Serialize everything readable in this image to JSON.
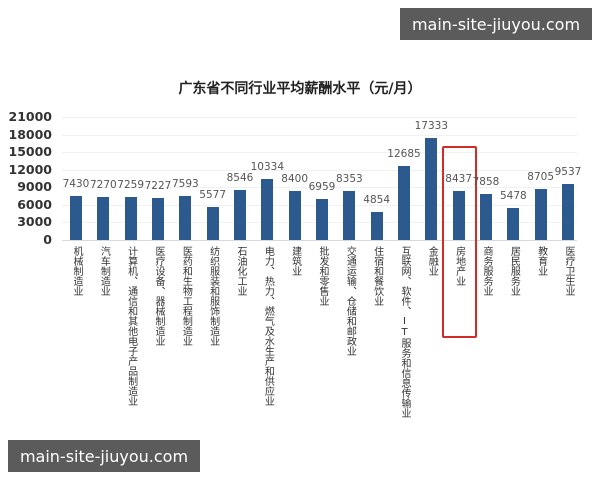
{
  "watermarks": {
    "top_right": "main-site-jiuyou.com",
    "bottom_left": "main-site-jiuyou.com"
  },
  "chart_data": {
    "type": "bar",
    "title": "广东省不同行业平均薪酬水平（元/月）",
    "xlabel": "",
    "ylabel": "",
    "ylim": [
      0,
      21000
    ],
    "yticks": [
      "21000",
      "18000",
      "15000",
      "12000",
      "9000",
      "6000",
      "3000",
      "0"
    ],
    "grid": true,
    "legend": null,
    "bar_color": "#2d5a8e",
    "highlight_color": "#d22c26",
    "highlighted_category": "房地产业",
    "categories": [
      "机械制造业",
      "汽车制造业",
      "计算机、通信和其他电子产品制造业",
      "医疗设备、器械制造业",
      "医药和生物工程制造业",
      "纺织服装和服饰制造业",
      "石油化工业",
      "电力、热力、燃气及水生产和供应业",
      "建筑业",
      "批发和零售业",
      "交通运输、仓储和邮政业",
      "住宿和餐饮业",
      "互联网、软件、IT服务和信息传输业",
      "金融业",
      "房地产业",
      "商务服务业",
      "居民服务业",
      "教育业",
      "医疗卫生业"
    ],
    "values": [
      7430,
      7270,
      7259,
      7227,
      7593,
      5577,
      8546,
      10334,
      8400,
      6959,
      8353,
      4854,
      12685,
      17333,
      8437,
      7858,
      5478,
      8705,
      9537
    ],
    "value_labels": [
      "7430",
      "7270",
      "7259",
      "7227",
      "7593",
      "5577",
      "8546",
      "10334",
      "8400",
      "6959",
      "8353",
      "4854",
      "12685",
      "17333",
      "8437",
      "7858",
      "5478",
      "8705",
      "9537"
    ]
  }
}
